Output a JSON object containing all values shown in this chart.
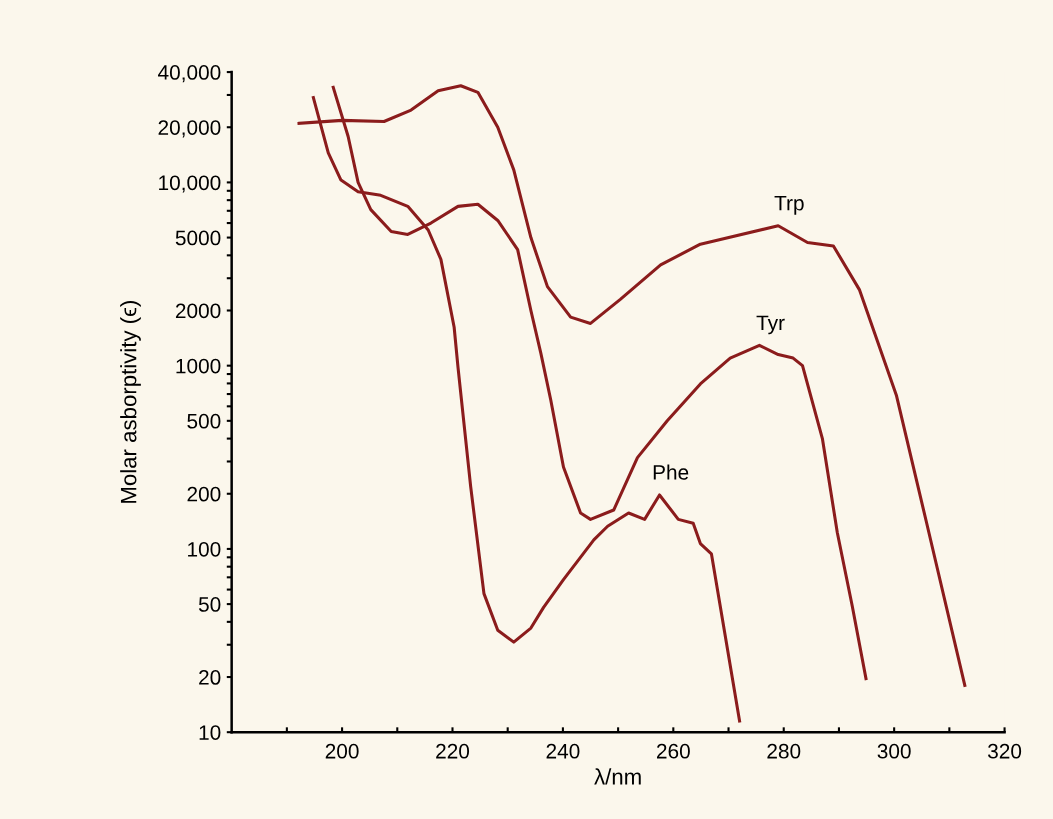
{
  "chart_data": {
    "type": "line",
    "xlabel": "λ/nm",
    "ylabel": "Molar asborptivity (ϵ)",
    "log": "y",
    "grid": false,
    "marker": "none",
    "line_style": "solid",
    "xlim": [
      180,
      320
    ],
    "xticks": [
      {
        "value": 190,
        "label": null
      },
      200,
      {
        "value": 210,
        "label": null
      },
      220,
      {
        "value": 230,
        "label": null
      },
      240,
      {
        "value": 250,
        "label": null
      },
      260,
      {
        "value": 270,
        "label": null
      },
      280,
      {
        "value": 290,
        "label": null
      },
      300,
      {
        "value": 310,
        "label": null
      },
      320
    ],
    "ylim": [
      10,
      40000
    ],
    "yticks": [
      10,
      20,
      {
        "value": 30,
        "label": null
      },
      {
        "value": 40,
        "label": null
      },
      50,
      {
        "value": 60,
        "label": null
      },
      {
        "value": 70,
        "label": null
      },
      {
        "value": 80,
        "label": null
      },
      {
        "value": 90,
        "label": null
      },
      100,
      200,
      {
        "value": 300,
        "label": null
      },
      {
        "value": 400,
        "label": null
      },
      500,
      {
        "value": 600,
        "label": null
      },
      {
        "value": 700,
        "label": null
      },
      {
        "value": 800,
        "label": null
      },
      {
        "value": 900,
        "label": null
      },
      1000,
      2000,
      {
        "value": 3000,
        "label": null
      },
      {
        "value": 4000,
        "label": null
      },
      5000,
      {
        "value": 6000,
        "label": null
      },
      {
        "value": 7000,
        "label": null
      },
      {
        "value": 8000,
        "label": null
      },
      {
        "value": 9000,
        "label": null
      },
      {
        "value": 10000,
        "label": "10,000"
      },
      {
        "value": 20000,
        "label": "20,000"
      },
      {
        "value": 30000,
        "label": null
      },
      {
        "value": 40000,
        "label": "40,000"
      }
    ],
    "series": [
      {
        "name": "Trp",
        "color": "#8b1c1c",
        "x": [
          192.2,
          200,
          207.6,
          212.5,
          217.4,
          221.5,
          224.6,
          228.2,
          231.1,
          234.2,
          237.2,
          241.4,
          245,
          250.4,
          257.7,
          264.9,
          279,
          284.3,
          289,
          293.7,
          300.4,
          305.8,
          312.8
        ],
        "values": [
          21000,
          21800,
          21500,
          24800,
          31600,
          33700,
          31000,
          20000,
          11700,
          5000,
          2700,
          1840,
          1700,
          2300,
          3550,
          4600,
          5800,
          4700,
          4500,
          2600,
          690,
          142,
          18
        ]
      },
      {
        "name": "Tyr",
        "color": "#8b1c1c",
        "x": [
          198.4,
          201.1,
          202.9,
          205.2,
          208.9,
          211.9,
          216.1,
          221,
          224.6,
          228.2,
          231.8,
          234.2,
          236,
          237.8,
          240.1,
          243.2,
          245,
          249.2,
          253.5,
          258.9,
          264.9,
          270.3,
          275.6,
          279,
          281.7,
          283.4,
          287,
          289.7,
          292.4,
          294.9
        ],
        "values": [
          33000,
          17800,
          10000,
          7100,
          5400,
          5200,
          6000,
          7400,
          7600,
          6200,
          4300,
          2000,
          1170,
          650,
          280,
          157,
          145,
          163,
          315,
          500,
          795,
          1100,
          1290,
          1150,
          1100,
          1000,
          400,
          123,
          49,
          19.6
        ]
      },
      {
        "name": "Phe",
        "color": "#8b1c1c",
        "x": [
          194.8,
          197.5,
          199.8,
          202.9,
          207,
          211.9,
          215.6,
          217.9,
          220.3,
          221,
          223.3,
          225.7,
          228.2,
          231.1,
          234.2,
          236.5,
          240.1,
          245.6,
          248.1,
          251.9,
          254.8,
          257.5,
          260.9,
          263.6,
          264.9,
          266.9,
          269.6,
          272
        ],
        "values": [
          29000,
          14500,
          10300,
          8900,
          8500,
          7400,
          5500,
          3800,
          1620,
          980,
          218,
          57,
          36,
          31,
          37,
          48,
          68,
          112,
          133,
          157,
          145,
          197,
          145,
          138,
          107,
          94,
          31,
          11.5
        ]
      }
    ]
  }
}
